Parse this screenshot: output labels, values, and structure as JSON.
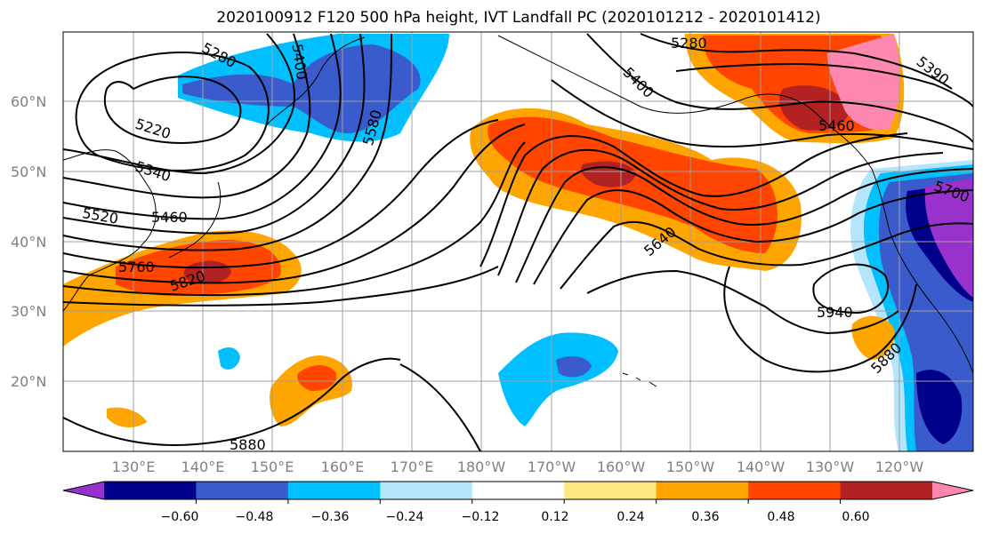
{
  "title": "2020100912 F120 500 hPa height, IVT Landfall PC (2020101212 - 2020101412)",
  "lat_labels": [
    "60°N",
    "50°N",
    "40°N",
    "30°N",
    "20°N"
  ],
  "lon_labels": [
    "130°E",
    "140°E",
    "150°E",
    "160°E",
    "170°E",
    "180°W",
    "170°W",
    "160°W",
    "150°W",
    "140°W",
    "130°W",
    "120°W"
  ],
  "colorbar": {
    "ticks": [
      "−0.60",
      "−0.48",
      "−0.36",
      "−0.24",
      "−0.12",
      "0.12",
      "0.24",
      "0.36",
      "0.48",
      "0.60"
    ],
    "colors": [
      "#9932cc",
      "#00008b",
      "#3a5bcc",
      "#00bfff",
      "#b3e5fc",
      "#ffffff",
      "#ffe680",
      "#ffa500",
      "#ff4500",
      "#b22222",
      "#ff88b0"
    ]
  },
  "contour_labels": [
    "5280",
    "5400",
    "5220",
    "5340",
    "5580",
    "5520",
    "5460",
    "5760",
    "5820",
    "5880",
    "5400",
    "5640",
    "5940",
    "5880",
    "5280",
    "5390",
    "5460",
    "5700"
  ]
}
